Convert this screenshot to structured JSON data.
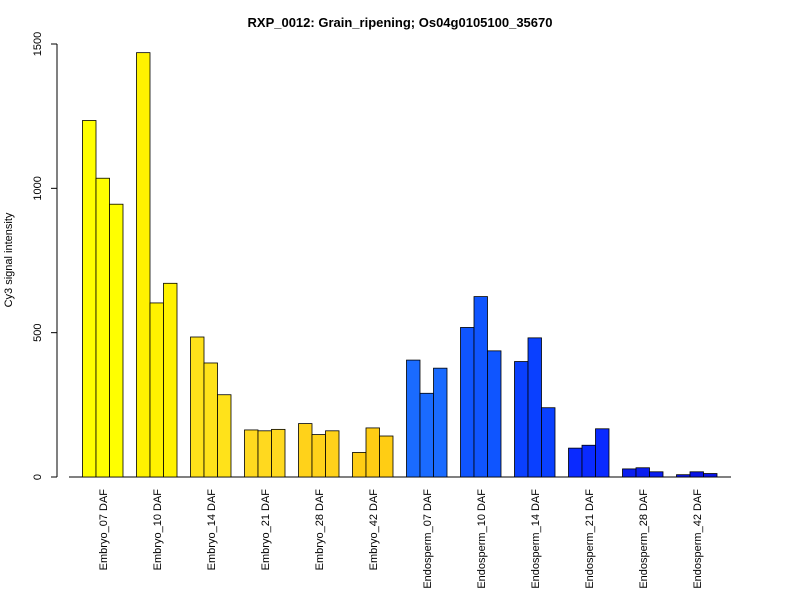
{
  "chart_data": {
    "type": "bar",
    "title": "RXP_0012: Grain_ripening; Os04g0105100_35670",
    "xlabel": "",
    "ylabel": "Cy3 signal intensity",
    "ylim": [
      0,
      1500
    ],
    "yticks": [
      0,
      500,
      1000,
      1500
    ],
    "grid": false,
    "categories": [
      "Embryo_07 DAF",
      "Embryo_10 DAF",
      "Embryo_14 DAF",
      "Embryo_21 DAF",
      "Embryo_28 DAF",
      "Embryo_42 DAF",
      "Endosperm_07 DAF",
      "Endosperm_10 DAF",
      "Endosperm_14 DAF",
      "Endosperm_21 DAF",
      "Endosperm_28 DAF",
      "Endosperm_42 DAF"
    ],
    "category_colors": [
      "#ffff00",
      "#fff200",
      "#ffe21a",
      "#ffd91f",
      "#ffd21a",
      "#ffcd14",
      "#1a6bff",
      "#0f55ff",
      "#0a40ff",
      "#0a2aff",
      "#0a1ef0",
      "#0a14e6"
    ],
    "replicates_values": [
      [
        1235,
        1035,
        945
      ],
      [
        1470,
        603,
        671
      ],
      [
        485,
        395,
        285
      ],
      [
        163,
        160,
        165
      ],
      [
        185,
        147,
        160
      ],
      [
        85,
        170,
        142
      ],
      [
        405,
        290,
        377
      ],
      [
        518,
        625,
        437
      ],
      [
        400,
        482,
        240
      ],
      [
        100,
        110,
        167
      ],
      [
        28,
        32,
        18
      ],
      [
        8,
        18,
        12
      ]
    ]
  }
}
